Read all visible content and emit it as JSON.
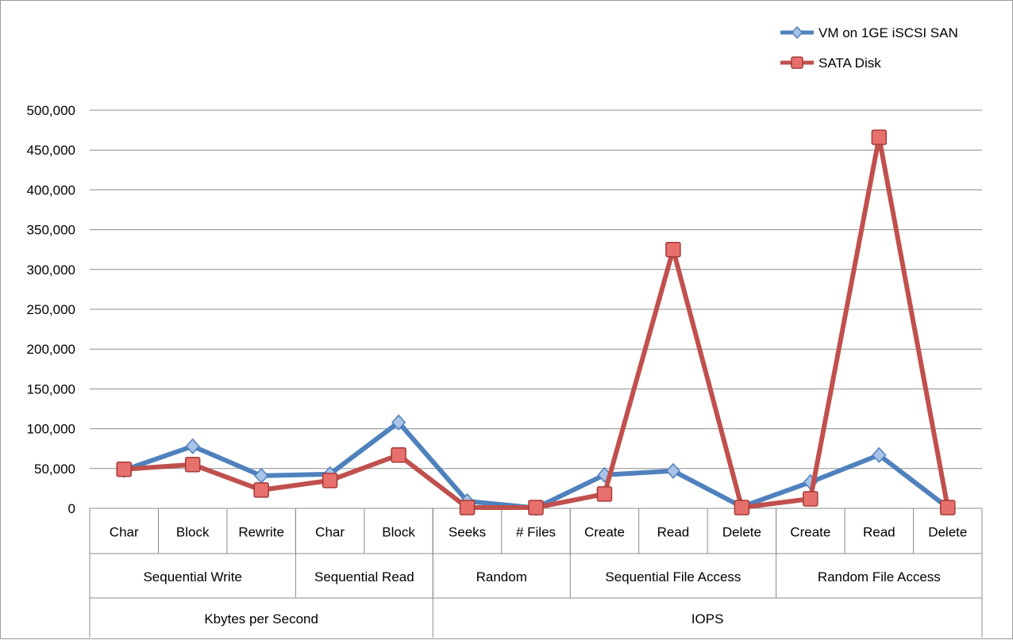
{
  "chart_data": {
    "type": "line",
    "title": "",
    "ylabel": "",
    "ylim": [
      0,
      500000
    ],
    "yticks": [
      0,
      50000,
      100000,
      150000,
      200000,
      250000,
      300000,
      350000,
      400000,
      450000,
      500000
    ],
    "ytick_labels": [
      "0",
      "50,000",
      "100,000",
      "150,000",
      "200,000",
      "250,000",
      "300,000",
      "350,000",
      "400,000",
      "450,000",
      "500,000"
    ],
    "grid": true,
    "legend_position": "top-right",
    "categories": [
      "Char",
      "Block",
      "Rewrite",
      "Char",
      "Block",
      "Seeks",
      "# Files",
      "Create",
      "Read",
      "Delete",
      "Create",
      "Read",
      "Delete"
    ],
    "category_groups": [
      {
        "label": "Sequential Write",
        "count": 3
      },
      {
        "label": "Sequential Read",
        "count": 2
      },
      {
        "label": "Random",
        "count": 2
      },
      {
        "label": "Sequential File Access",
        "count": 3
      },
      {
        "label": "Random File Access",
        "count": 3
      }
    ],
    "category_supergroups": [
      {
        "label": "Kbytes per Second",
        "count": 5
      },
      {
        "label": "IOPS",
        "count": 8
      }
    ],
    "series": [
      {
        "name": "VM on 1GE iSCSI SAN",
        "color": "#4f81bd",
        "marker": "diamond",
        "values": [
          48000,
          78000,
          41000,
          43000,
          108000,
          9000,
          500,
          42000,
          47000,
          2000,
          33000,
          67000,
          1000
        ]
      },
      {
        "name": "SATA Disk",
        "color": "#c0504d",
        "marker": "square",
        "values": [
          49000,
          55000,
          23000,
          35000,
          67000,
          1000,
          1000,
          18000,
          325000,
          1000,
          12000,
          466000,
          1000
        ]
      }
    ]
  }
}
